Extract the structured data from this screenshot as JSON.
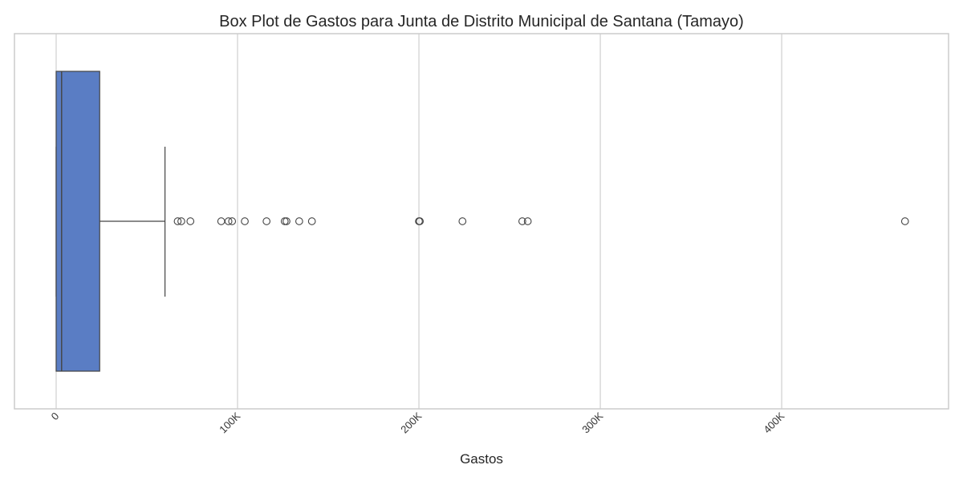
{
  "chart_data": {
    "type": "box",
    "orientation": "horizontal",
    "title": "Box Plot de Gastos para Junta de Distrito Municipal de Santana (Tamayo)",
    "xlabel": "Gastos",
    "ylabel": "",
    "xlim": [
      -23000,
      492000
    ],
    "xticks": [
      0,
      100000,
      200000,
      300000,
      400000
    ],
    "xtick_labels": [
      "0",
      "100K",
      "200K",
      "300K",
      "400K"
    ],
    "grid": "vertical",
    "box": {
      "whisker_low": 0,
      "q1": 0,
      "median": 3000,
      "q3": 24000,
      "whisker_high": 60000
    },
    "outliers": [
      67000,
      69000,
      74000,
      91000,
      95000,
      97000,
      104000,
      116000,
      126000,
      127000,
      134000,
      141000,
      200000,
      200500,
      224000,
      257000,
      260000,
      468000
    ],
    "colors": {
      "box_fill": "#5a7dc4",
      "line": "#444444",
      "grid": "#cfcfcf",
      "frame": "#cccccc",
      "text": "#262626"
    }
  }
}
